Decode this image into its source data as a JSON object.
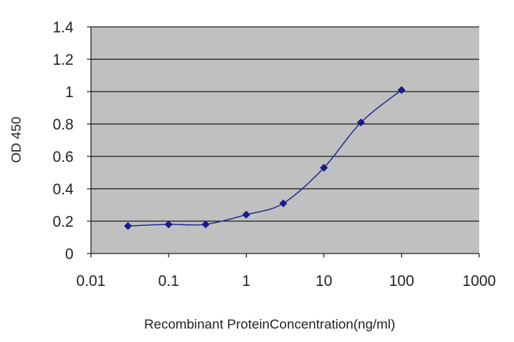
{
  "chart_data": {
    "type": "line",
    "xlabel": "Recombinant ProteinConcentration(ng/ml)",
    "ylabel": "OD 450",
    "x_scale": "log",
    "xlim": [
      0.01,
      1000
    ],
    "ylim": [
      0,
      1.4
    ],
    "x_ticks": [
      "0.01",
      "0.1",
      "1",
      "10",
      "100",
      "1000"
    ],
    "y_ticks": [
      "0",
      "0.2",
      "0.4",
      "0.6",
      "0.8",
      "1",
      "1.2",
      "1.4"
    ],
    "grid": {
      "horizontal": true,
      "vertical": false
    },
    "series": [
      {
        "color": "#1f2f8f",
        "x": [
          0.03,
          0.1,
          0.3,
          1,
          3,
          10,
          30,
          100
        ],
        "y": [
          0.17,
          0.18,
          0.18,
          0.24,
          0.31,
          0.53,
          0.81,
          1.01
        ]
      }
    ],
    "colors": {
      "plot_background": "#c0c0c0",
      "grid": "#000000",
      "marker": "#1a1a8c"
    }
  }
}
